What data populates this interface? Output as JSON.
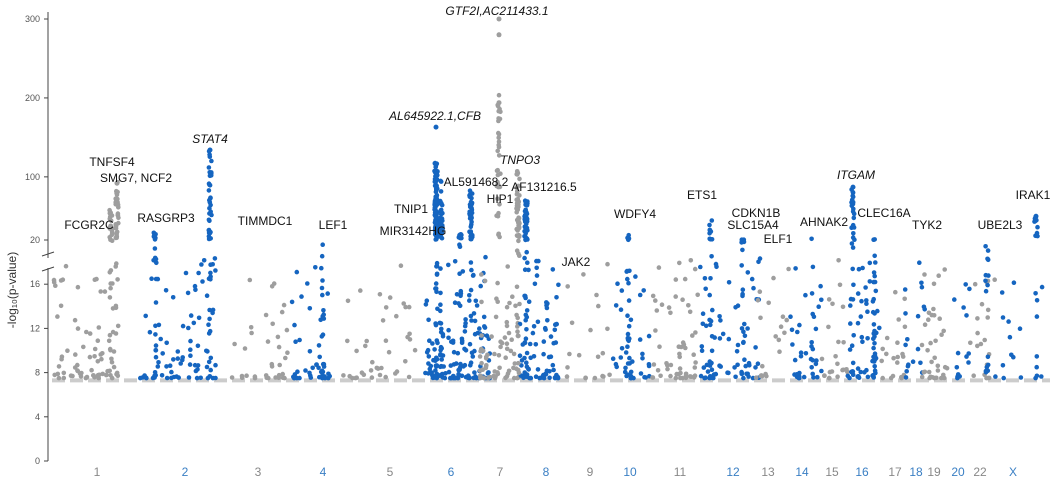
{
  "chart_data": {
    "type": "scatter",
    "title": "",
    "xlabel": "",
    "ylabel": "-log₁₀(p-value)",
    "y_axis": {
      "broken": true,
      "lower_ticks": [
        "0",
        "4",
        "8",
        "12",
        "16",
        "20"
      ],
      "upper_ticks": [
        "100",
        "200",
        "300"
      ],
      "threshold": 7.3
    },
    "colors": {
      "odd": "#9e9e9e",
      "even": "#1565c0",
      "threshold": "#cccccc",
      "axis": "#444444",
      "label_odd": "#888888",
      "label_even": "#3a7fc4"
    },
    "chromosomes": [
      "1",
      "2",
      "3",
      "4",
      "5",
      "6",
      "7",
      "8",
      "9",
      "10",
      "11",
      "12",
      "13",
      "14",
      "15",
      "16",
      "17",
      "18",
      "19",
      "20",
      "22",
      "X"
    ],
    "annotations": [
      {
        "text": "GTF2I,AC211433.1",
        "italic": true
      },
      {
        "text": "AL645922.1,CFB",
        "italic": true
      },
      {
        "text": "STAT4",
        "italic": true
      },
      {
        "text": "TNFSF4",
        "italic": false
      },
      {
        "text": "SMG7, NCF2",
        "italic": false
      },
      {
        "text": "TNPO3",
        "italic": true
      },
      {
        "text": "ITGAM",
        "italic": true
      },
      {
        "text": "AL591468.2",
        "italic": false
      },
      {
        "text": "AF131216.5",
        "italic": false
      },
      {
        "text": "HIP1",
        "italic": false
      },
      {
        "text": "ETS1",
        "italic": false
      },
      {
        "text": "IRAK1",
        "italic": false
      },
      {
        "text": "FCGR2C",
        "italic": false
      },
      {
        "text": "RASGRP3",
        "italic": false
      },
      {
        "text": "TIMMDC1",
        "italic": false
      },
      {
        "text": "LEF1",
        "italic": false
      },
      {
        "text": "TNIP1",
        "italic": false
      },
      {
        "text": "MIR3142HG",
        "italic": false
      },
      {
        "text": "WDFY4",
        "italic": false
      },
      {
        "text": "CDKN1B",
        "italic": false
      },
      {
        "text": "SLC15A4",
        "italic": false
      },
      {
        "text": "ELF1",
        "italic": false
      },
      {
        "text": "AHNAK2",
        "italic": false
      },
      {
        "text": "CLEC16A",
        "italic": false
      },
      {
        "text": "TYK2",
        "italic": false
      },
      {
        "text": "UBE2L3",
        "italic": false
      },
      {
        "text": "JAK2",
        "italic": false
      }
    ]
  }
}
